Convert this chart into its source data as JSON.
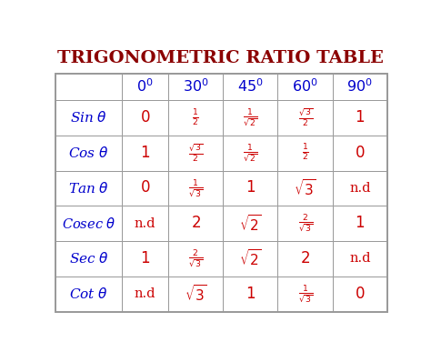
{
  "title": "TRIGONOMETRIC RATIO TABLE",
  "title_color": "#8B0000",
  "header_color": "#0000CC",
  "cell_color": "#CC0000",
  "row_label_color": "#0000CC",
  "bg_color": "#FFFFFF",
  "grid_color": "#999999",
  "col_headers": [
    "",
    "$0^0$",
    "$30^0$",
    "$45^0$",
    "$60^0$",
    "$90^0$"
  ],
  "row_labels": [
    "Sin $\\theta$",
    "Cos $\\theta$",
    "Tan $\\theta$",
    "Cosec $\\theta$",
    "Sec $\\theta$",
    "Cot $\\theta$"
  ],
  "cell_data": [
    [
      "$0$",
      "$\\frac{1}{2}$",
      "$\\frac{1}{\\sqrt{2}}$",
      "$\\frac{\\sqrt{3}}{2}$",
      "$1$"
    ],
    [
      "$1$",
      "$\\frac{\\sqrt{3}}{2}$",
      "$\\frac{1}{\\sqrt{2}}$",
      "$\\frac{1}{2}$",
      "$0$"
    ],
    [
      "$0$",
      "$\\frac{1}{\\sqrt{3}}$",
      "$1$",
      "$\\sqrt{3}$",
      "n.d"
    ],
    [
      "n.d",
      "$2$",
      "$\\sqrt{2}$",
      "$\\frac{2}{\\sqrt{3}}$",
      "$1$"
    ],
    [
      "$1$",
      "$\\frac{2}{\\sqrt{3}}$",
      "$\\sqrt{2}$",
      "$2$",
      "n.d"
    ],
    [
      "n.d",
      "$\\sqrt{3}$",
      "$1$",
      "$\\frac{1}{\\sqrt{3}}$",
      "$0$"
    ]
  ],
  "figsize": [
    4.74,
    3.87
  ],
  "dpi": 100
}
